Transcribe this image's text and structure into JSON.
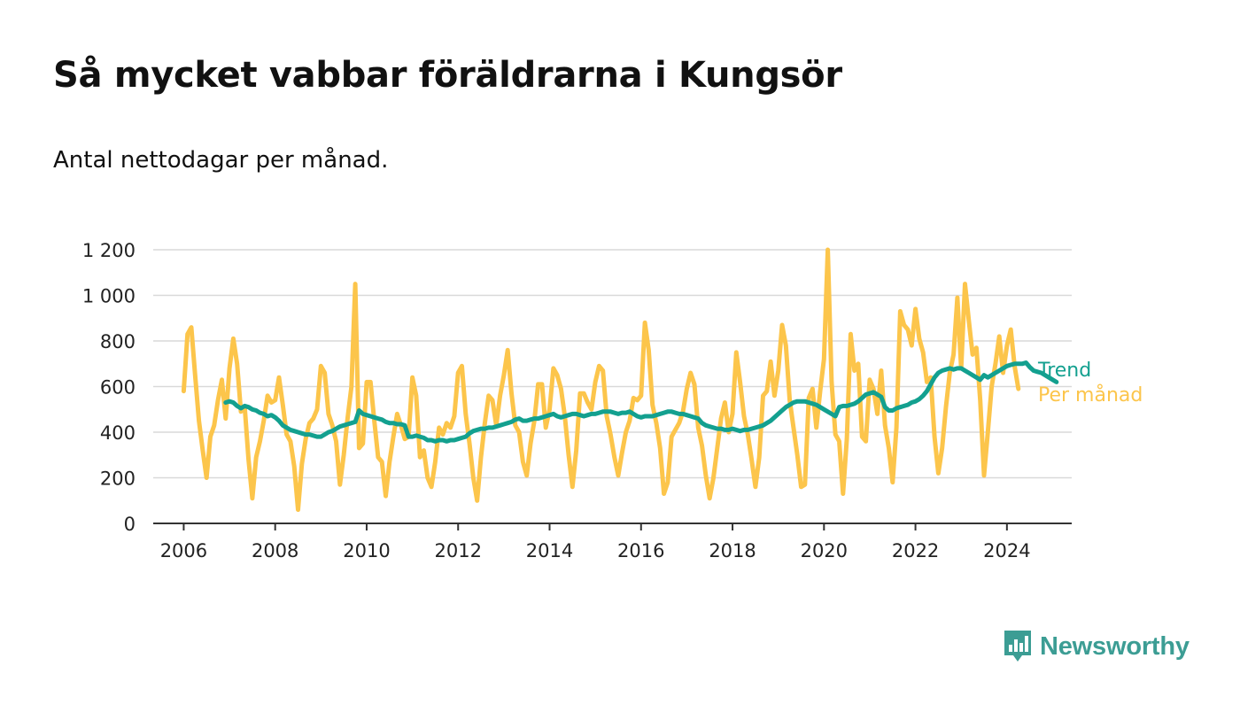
{
  "title": "Så mycket vabbar föräldrarna i Kungsör",
  "subtitle": "Antal nettodagar per månad.",
  "brand": {
    "name": "Newsworthy",
    "color": "#3c9d94",
    "icon": "bar-chart-speech-bubble-icon"
  },
  "colors": {
    "monthly": "#fcc54b",
    "trend": "#13a08f",
    "grid": "#d9d9d9",
    "axis": "#333333"
  },
  "chart_data": {
    "type": "line",
    "x_unit": "month",
    "grid": true,
    "legend": "inline-right",
    "xlim": [
      "2005-05",
      "2025-06"
    ],
    "ylim": [
      0,
      1200
    ],
    "yticks": [
      0,
      200,
      400,
      600,
      800,
      1000,
      1200
    ],
    "ytick_labels": [
      "0",
      "200",
      "400",
      "600",
      "800",
      "1 000",
      "1 200"
    ],
    "xticks": [
      "2006",
      "2008",
      "2010",
      "2012",
      "2014",
      "2016",
      "2018",
      "2020",
      "2022",
      "2024"
    ],
    "series": [
      {
        "name": "Per månad",
        "start": "2006-01",
        "values": [
          580,
          830,
          860,
          650,
          450,
          320,
          200,
          380,
          430,
          540,
          630,
          460,
          680,
          810,
          700,
          490,
          510,
          280,
          110,
          290,
          360,
          450,
          560,
          530,
          540,
          640,
          520,
          390,
          360,
          250,
          60,
          260,
          370,
          440,
          460,
          500,
          690,
          660,
          480,
          430,
          360,
          170,
          300,
          460,
          600,
          1050,
          330,
          350,
          620,
          620,
          450,
          290,
          270,
          120,
          270,
          380,
          480,
          430,
          370,
          380,
          640,
          560,
          290,
          320,
          200,
          160,
          270,
          420,
          390,
          440,
          420,
          470,
          660,
          690,
          480,
          350,
          200,
          100,
          290,
          440,
          560,
          540,
          430,
          560,
          650,
          760,
          570,
          430,
          400,
          270,
          210,
          350,
          450,
          610,
          610,
          420,
          500,
          680,
          650,
          590,
          470,
          300,
          160,
          320,
          570,
          570,
          530,
          500,
          620,
          690,
          670,
          470,
          390,
          290,
          210,
          310,
          400,
          450,
          550,
          540,
          560,
          880,
          760,
          520,
          440,
          330,
          130,
          180,
          380,
          410,
          440,
          490,
          590,
          660,
          610,
          420,
          340,
          210,
          110,
          200,
          330,
          460,
          530,
          400,
          480,
          750,
          620,
          470,
          390,
          280,
          160,
          290,
          560,
          580,
          710,
          560,
          670,
          870,
          780,
          540,
          420,
          300,
          160,
          170,
          550,
          590,
          420,
          580,
          720,
          1200,
          620,
          390,
          360,
          130,
          370,
          830,
          670,
          700,
          380,
          360,
          630,
          590,
          480,
          670,
          430,
          330,
          180,
          420,
          930,
          870,
          850,
          780,
          940,
          810,
          750,
          620,
          640,
          380,
          220,
          330,
          510,
          660,
          740,
          990,
          680,
          1050,
          890,
          740,
          770,
          540,
          210,
          400,
          600,
          700,
          820,
          660,
          780,
          850,
          690,
          590
        ]
      },
      {
        "name": "Trend",
        "start": "2006-12",
        "values": [
          530,
          535,
          530,
          515,
          505,
          515,
          510,
          500,
          495,
          485,
          480,
          470,
          475,
          465,
          450,
          430,
          420,
          410,
          405,
          400,
          395,
          390,
          390,
          385,
          380,
          380,
          390,
          400,
          405,
          415,
          425,
          430,
          435,
          440,
          445,
          495,
          480,
          475,
          470,
          465,
          460,
          455,
          445,
          440,
          440,
          435,
          435,
          430,
          380,
          380,
          385,
          380,
          375,
          365,
          365,
          360,
          365,
          365,
          360,
          365,
          365,
          370,
          375,
          380,
          395,
          405,
          410,
          415,
          415,
          420,
          420,
          425,
          430,
          435,
          440,
          445,
          455,
          460,
          450,
          450,
          455,
          460,
          460,
          465,
          470,
          475,
          480,
          470,
          465,
          470,
          475,
          480,
          480,
          475,
          470,
          475,
          480,
          480,
          485,
          490,
          490,
          490,
          485,
          480,
          485,
          485,
          490,
          480,
          470,
          465,
          470,
          470,
          470,
          475,
          480,
          485,
          490,
          490,
          485,
          480,
          480,
          475,
          470,
          465,
          460,
          440,
          430,
          425,
          420,
          415,
          415,
          410,
          410,
          415,
          410,
          405,
          410,
          410,
          415,
          420,
          425,
          430,
          440,
          450,
          465,
          480,
          495,
          510,
          520,
          530,
          535,
          535,
          535,
          530,
          525,
          520,
          510,
          500,
          490,
          480,
          470,
          510,
          515,
          515,
          520,
          525,
          535,
          550,
          565,
          570,
          575,
          565,
          555,
          510,
          495,
          495,
          505,
          510,
          515,
          520,
          530,
          535,
          545,
          560,
          580,
          610,
          640,
          660,
          670,
          675,
          680,
          675,
          680,
          680,
          670,
          660,
          650,
          640,
          630,
          650,
          640,
          650,
          660,
          670,
          680,
          690,
          695,
          700,
          700,
          700,
          705,
          685,
          670,
          665,
          660,
          650,
          640,
          630,
          620
        ]
      }
    ]
  }
}
